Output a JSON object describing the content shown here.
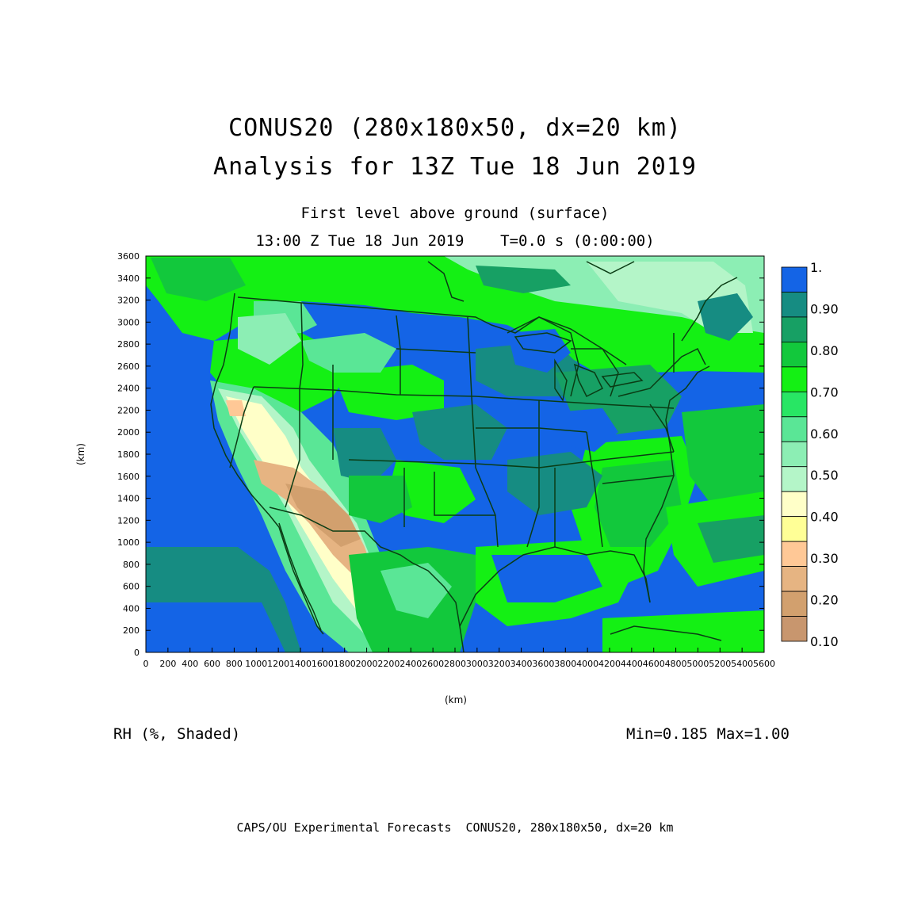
{
  "title": {
    "line1": "CONUS20 (280x180x50, dx=20 km)",
    "line2": "Analysis for 13Z Tue 18 Jun 2019"
  },
  "subtitle": {
    "line1": "First level above ground (surface)",
    "line2": "13:00 Z Tue 18 Jun 2019    T=0.0 s (0:00:00)"
  },
  "axes": {
    "x_label": "(km)",
    "y_label": "(km)",
    "x_ticks": [
      "0",
      "200",
      "400",
      "600",
      "800",
      "1000",
      "1200",
      "1400",
      "1600",
      "1800",
      "2000",
      "2200",
      "2400",
      "2600",
      "2800",
      "3000",
      "3200",
      "3400",
      "3600",
      "3800",
      "4000",
      "4200",
      "4400",
      "4600",
      "4800",
      "5000",
      "5200",
      "5400",
      "5600"
    ],
    "y_ticks": [
      "0",
      "200",
      "400",
      "600",
      "800",
      "1000",
      "1200",
      "1400",
      "1600",
      "1800",
      "2000",
      "2200",
      "2400",
      "2600",
      "2800",
      "3000",
      "3200",
      "3400",
      "3600"
    ],
    "x_range": [
      0,
      5600
    ],
    "y_range": [
      0,
      3600
    ]
  },
  "colorbar": {
    "labels": [
      "1.",
      "0.90",
      "0.80",
      "0.70",
      "0.60",
      "0.50",
      "0.40",
      "0.30",
      "0.20",
      "0.10"
    ],
    "colors": [
      "#1464e6",
      "#168c82",
      "#17a064",
      "#12c83c",
      "#14f014",
      "#28e664",
      "#5ae696",
      "#8ceeb4",
      "#b4f5c8",
      "#ffffc8",
      "#ffff96",
      "#ffc896",
      "#e6b482",
      "#d2a06e",
      "#c8966e"
    ]
  },
  "field_label": "RH (%, Shaded)",
  "min_max": "Min=0.185 Max=1.00",
  "credit": "CAPS/OU Experimental Forecasts  CONUS20, 280x180x50, dx=20 km"
}
